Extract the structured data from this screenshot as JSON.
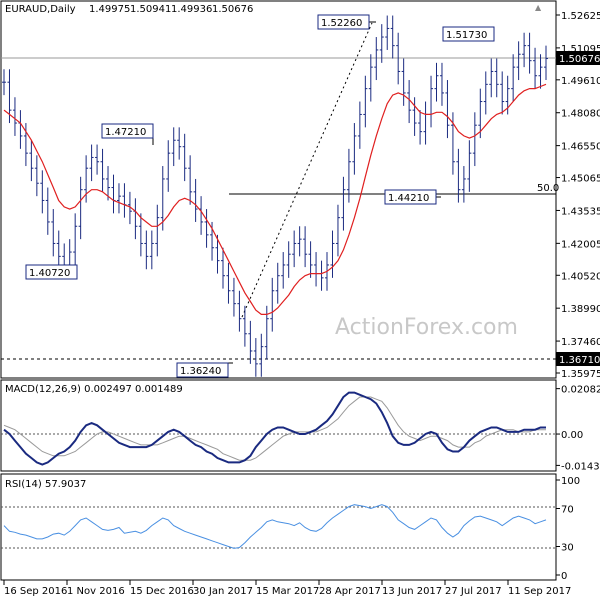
{
  "chart_data": [
    {
      "type": "line",
      "panel": "price",
      "title": "EURAUD,Daily",
      "ohlc_readout": [
        "1.49975",
        "1.50941",
        "1.49936",
        "1.50676"
      ],
      "x_ticks": [
        "16 Sep 2016",
        "1 Nov 2016",
        "15 Dec 2016",
        "30 Jan 2017",
        "15 Mar 2017",
        "28 Apr 2017",
        "13 Jun 2017",
        "27 Jul 2017",
        "11 Sep 2017"
      ],
      "y_ticks": [
        "1.52625",
        "1.51095",
        "1.49610",
        "1.48080",
        "1.46550",
        "1.45065",
        "1.43535",
        "1.42005",
        "1.40520",
        "1.38990",
        "1.37460",
        "1.35975"
      ],
      "ylim": [
        1.35975,
        1.52625
      ],
      "current_price_label": "1.50676",
      "support_line_label": "1.36710",
      "fib_label": "50.0",
      "annotations": [
        "1.52260",
        "1.51730",
        "1.47210",
        "1.44210",
        "1.40720",
        "1.36240"
      ],
      "watermark": "ActionForex.com",
      "series": [
        {
          "role": "close",
          "color": "#1a2a80",
          "values": [
            1.495,
            1.482,
            1.476,
            1.47,
            1.462,
            1.455,
            1.448,
            1.44,
            1.43,
            1.42,
            1.414,
            1.41,
            1.416,
            1.428,
            1.445,
            1.455,
            1.46,
            1.458,
            1.45,
            1.446,
            1.44,
            1.442,
            1.438,
            1.435,
            1.428,
            1.42,
            1.414,
            1.42,
            1.432,
            1.45,
            1.462,
            1.468,
            1.465,
            1.455,
            1.444,
            1.436,
            1.43,
            1.424,
            1.418,
            1.412,
            1.405,
            1.398,
            1.392,
            1.385,
            1.378,
            1.37,
            1.364,
            1.372,
            1.385,
            1.398,
            1.405,
            1.41,
            1.415,
            1.42,
            1.422,
            1.415,
            1.41,
            1.406,
            1.404,
            1.41,
            1.42,
            1.432,
            1.445,
            1.458,
            1.47,
            1.48,
            1.492,
            1.502,
            1.51,
            1.516,
            1.52,
            1.512,
            1.5,
            1.49,
            1.482,
            1.476,
            1.472,
            1.48,
            1.492,
            1.498,
            1.49,
            1.475,
            1.458,
            1.445,
            1.45,
            1.462,
            1.475,
            1.486,
            1.494,
            1.5,
            1.494,
            1.486,
            1.492,
            1.502,
            1.508,
            1.512,
            1.505,
            1.498,
            1.502,
            1.506
          ]
        },
        {
          "role": "sma",
          "color": "#e02020",
          "values": [
            1.482,
            1.48,
            1.478,
            1.476,
            1.472,
            1.468,
            1.463,
            1.458,
            1.452,
            1.446,
            1.44,
            1.437,
            1.436,
            1.437,
            1.44,
            1.443,
            1.445,
            1.445,
            1.444,
            1.442,
            1.44,
            1.439,
            1.438,
            1.437,
            1.435,
            1.432,
            1.43,
            1.428,
            1.428,
            1.43,
            1.433,
            1.437,
            1.44,
            1.441,
            1.44,
            1.438,
            1.435,
            1.431,
            1.427,
            1.422,
            1.417,
            1.412,
            1.407,
            1.402,
            1.397,
            1.393,
            1.389,
            1.387,
            1.387,
            1.388,
            1.39,
            1.393,
            1.396,
            1.4,
            1.403,
            1.405,
            1.406,
            1.406,
            1.406,
            1.407,
            1.409,
            1.412,
            1.417,
            1.424,
            1.432,
            1.441,
            1.451,
            1.461,
            1.47,
            1.478,
            1.485,
            1.489,
            1.49,
            1.489,
            1.487,
            1.484,
            1.481,
            1.48,
            1.48,
            1.481,
            1.481,
            1.479,
            1.476,
            1.472,
            1.47,
            1.469,
            1.47,
            1.472,
            1.475,
            1.478,
            1.48,
            1.481,
            1.483,
            1.486,
            1.489,
            1.491,
            1.492,
            1.492,
            1.493,
            1.494
          ]
        }
      ]
    },
    {
      "type": "line",
      "panel": "macd",
      "title": "MACD(12,26,9) 0.002497 0.001489",
      "y_ticks": [
        "0.020827",
        "0.00",
        "-0.014386"
      ],
      "ylim": [
        -0.0165,
        0.0225
      ],
      "series": [
        {
          "role": "macd",
          "color": "#1a2a80",
          "values": [
            0.002,
            0.0,
            -0.003,
            -0.006,
            -0.009,
            -0.011,
            -0.013,
            -0.014,
            -0.013,
            -0.011,
            -0.009,
            -0.008,
            -0.006,
            -0.003,
            0.001,
            0.004,
            0.005,
            0.004,
            0.002,
            0.0,
            -0.002,
            -0.004,
            -0.005,
            -0.006,
            -0.006,
            -0.006,
            -0.006,
            -0.005,
            -0.003,
            -0.001,
            0.001,
            0.002,
            0.001,
            -0.001,
            -0.003,
            -0.005,
            -0.006,
            -0.008,
            -0.009,
            -0.011,
            -0.012,
            -0.013,
            -0.013,
            -0.013,
            -0.012,
            -0.01,
            -0.006,
            -0.003,
            0.0,
            0.002,
            0.003,
            0.003,
            0.002,
            0.001,
            0.0,
            0.0,
            0.001,
            0.002,
            0.004,
            0.006,
            0.009,
            0.013,
            0.017,
            0.019,
            0.019,
            0.018,
            0.017,
            0.016,
            0.014,
            0.01,
            0.005,
            -0.001,
            -0.004,
            -0.005,
            -0.005,
            -0.004,
            -0.002,
            0.0,
            0.001,
            0.0,
            -0.004,
            -0.007,
            -0.008,
            -0.008,
            -0.006,
            -0.003,
            -0.001,
            0.001,
            0.002,
            0.003,
            0.003,
            0.002,
            0.001,
            0.001,
            0.001,
            0.002,
            0.002,
            0.002,
            0.003,
            0.003
          ]
        },
        {
          "role": "signal",
          "color": "#9a9a9a",
          "values": [
            0.004,
            0.003,
            0.002,
            0.0,
            -0.002,
            -0.004,
            -0.006,
            -0.008,
            -0.009,
            -0.01,
            -0.01,
            -0.01,
            -0.009,
            -0.008,
            -0.006,
            -0.004,
            -0.002,
            0.0,
            0.001,
            0.001,
            0.0,
            -0.001,
            -0.002,
            -0.003,
            -0.004,
            -0.005,
            -0.005,
            -0.005,
            -0.005,
            -0.004,
            -0.003,
            -0.002,
            -0.001,
            -0.001,
            -0.002,
            -0.003,
            -0.004,
            -0.005,
            -0.006,
            -0.007,
            -0.009,
            -0.01,
            -0.011,
            -0.012,
            -0.012,
            -0.012,
            -0.011,
            -0.009,
            -0.007,
            -0.005,
            -0.003,
            -0.001,
            0.0,
            0.001,
            0.001,
            0.001,
            0.001,
            0.001,
            0.002,
            0.003,
            0.005,
            0.007,
            0.01,
            0.013,
            0.015,
            0.017,
            0.017,
            0.017,
            0.016,
            0.015,
            0.012,
            0.008,
            0.004,
            0.001,
            -0.001,
            -0.002,
            -0.003,
            -0.002,
            -0.001,
            -0.001,
            -0.002,
            -0.003,
            -0.005,
            -0.006,
            -0.006,
            -0.006,
            -0.004,
            -0.003,
            -0.001,
            0.0,
            0.001,
            0.002,
            0.002,
            0.002,
            0.001,
            0.001,
            0.001,
            0.002,
            0.002,
            0.002
          ]
        }
      ]
    },
    {
      "type": "line",
      "panel": "rsi",
      "title": "RSI(14) 57.9037",
      "y_ticks": [
        "100",
        "70",
        "30",
        "0"
      ],
      "ylim": [
        0,
        100
      ],
      "levels": [
        70,
        30
      ],
      "series": [
        {
          "role": "rsi",
          "color": "#4a90e2",
          "values": [
            52,
            46,
            45,
            43,
            42,
            40,
            38,
            38,
            40,
            43,
            44,
            42,
            46,
            52,
            58,
            60,
            56,
            52,
            48,
            47,
            48,
            50,
            44,
            45,
            46,
            44,
            47,
            52,
            56,
            60,
            58,
            52,
            49,
            46,
            44,
            42,
            40,
            38,
            36,
            34,
            32,
            30,
            28,
            29,
            34,
            40,
            45,
            50,
            56,
            58,
            56,
            55,
            54,
            52,
            55,
            50,
            47,
            46,
            49,
            55,
            60,
            64,
            68,
            72,
            74,
            73,
            72,
            70,
            72,
            74,
            72,
            66,
            58,
            54,
            50,
            48,
            52,
            56,
            60,
            58,
            50,
            44,
            40,
            44,
            52,
            57,
            61,
            62,
            60,
            58,
            56,
            52,
            56,
            60,
            62,
            60,
            58,
            54,
            56,
            58
          ]
        }
      ]
    }
  ]
}
